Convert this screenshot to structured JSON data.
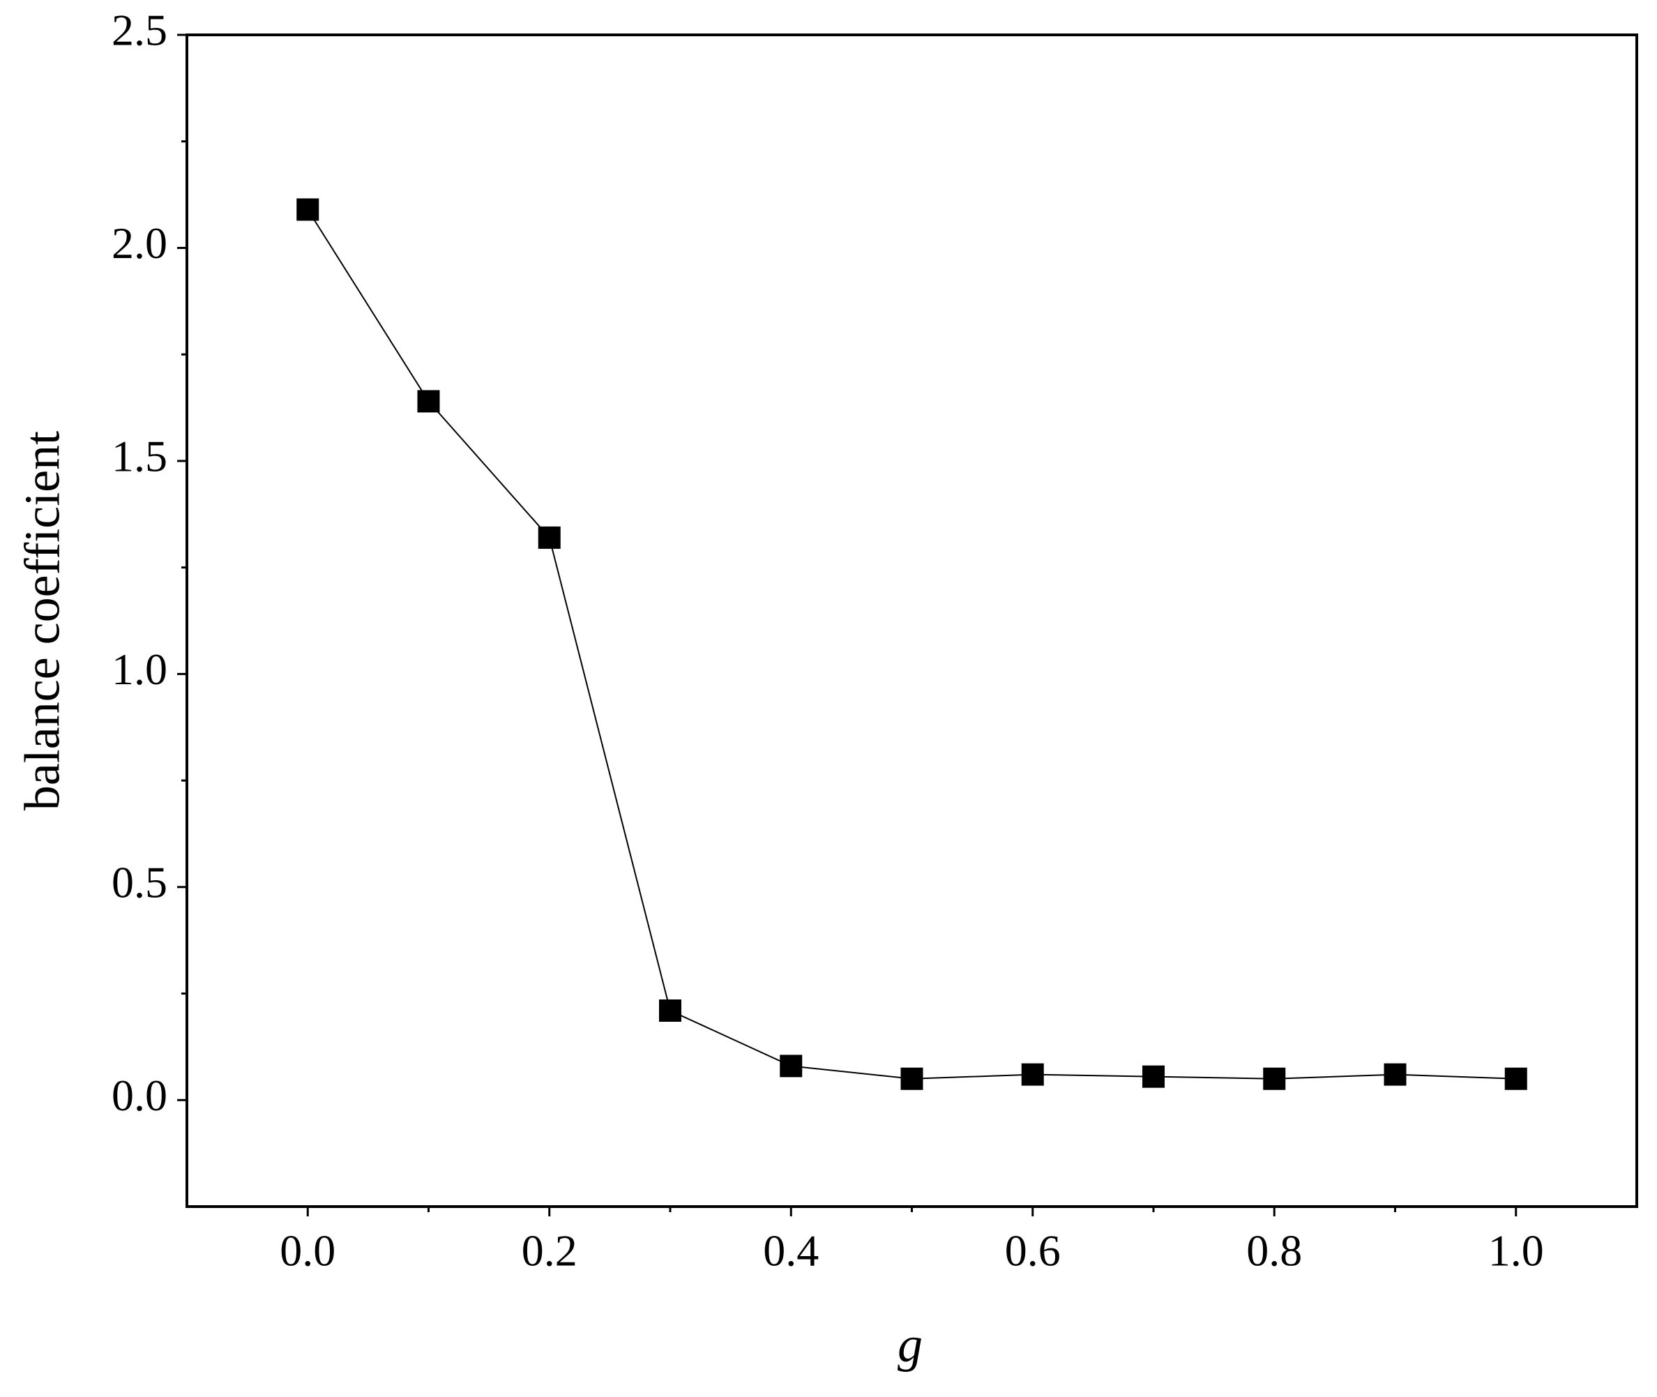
{
  "chart_data": {
    "type": "line",
    "x_label": "g",
    "y_label": "balance coefficient",
    "x": [
      0.0,
      0.1,
      0.2,
      0.3,
      0.4,
      0.5,
      0.6,
      0.7,
      0.8,
      0.9,
      1.0
    ],
    "series": [
      {
        "color": "#000000",
        "marker": "square",
        "values": [
          2.09,
          1.64,
          1.32,
          0.21,
          0.08,
          0.05,
          0.06,
          0.055,
          0.05,
          0.06,
          0.05
        ]
      }
    ],
    "xlim": [
      -0.1,
      1.1
    ],
    "ylim": [
      -0.25,
      2.5
    ],
    "xticks": [
      {
        "value": 0,
        "label": "0.0"
      },
      0.2,
      0.4,
      0.6,
      0.8,
      {
        "value": 1,
        "label": "1.0"
      }
    ],
    "yticks": [
      {
        "value": 0,
        "label": "0.0"
      },
      0.5,
      {
        "value": 1,
        "label": "1.0"
      },
      1.5,
      {
        "value": 2,
        "label": "2.0"
      },
      2.5
    ],
    "grid": false
  }
}
